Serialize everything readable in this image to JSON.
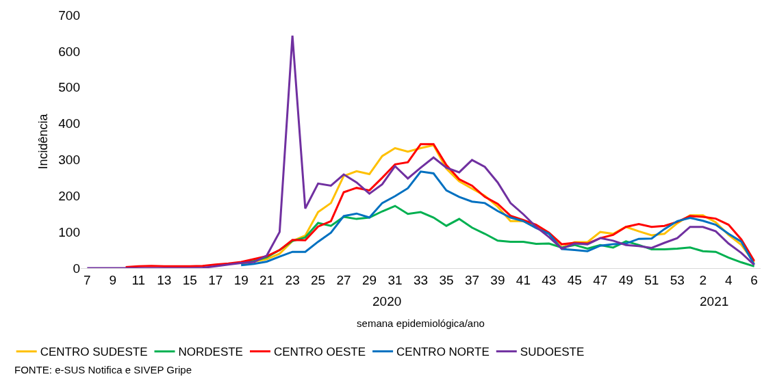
{
  "chart_data": {
    "type": "line",
    "xlabel": "semana epidemiológica/ano",
    "ylabel": "Incidência",
    "categories": [
      "7",
      null,
      "9",
      null,
      "11",
      null,
      "13",
      null,
      "15",
      null,
      "17",
      null,
      "19",
      null,
      "21",
      null,
      "23",
      null,
      "25",
      null,
      "27",
      null,
      "29",
      null,
      "31",
      null,
      "33",
      null,
      "35",
      null,
      "37",
      null,
      "39",
      null,
      "41",
      null,
      "43",
      null,
      "45",
      null,
      "47",
      null,
      "49",
      null,
      "51",
      null,
      "53",
      null,
      "2",
      null,
      "4",
      null,
      "6"
    ],
    "ylim": [
      0,
      700
    ],
    "yticks": [
      0,
      100,
      200,
      300,
      400,
      500,
      600,
      700
    ],
    "legend": "bottom",
    "marker": "none",
    "line_style": "solid",
    "series": [
      {
        "name": "CENTRO SUDESTE",
        "color": "#ffc000",
        "values": [
          null,
          null,
          null,
          null,
          null,
          null,
          null,
          null,
          null,
          null,
          null,
          null,
          12,
          18,
          25,
          40,
          75,
          90,
          155,
          180,
          255,
          268,
          260,
          310,
          332,
          322,
          332,
          340,
          275,
          240,
          220,
          200,
          170,
          130,
          130,
          114,
          95,
          57,
          72,
          72,
          100,
          95,
          114,
          102,
          91,
          95,
          124,
          146,
          146,
          127,
          92,
          64,
          16
        ]
      },
      {
        "name": "NORDESTE",
        "color": "#00b050",
        "values": [
          null,
          null,
          null,
          null,
          null,
          null,
          null,
          null,
          null,
          null,
          null,
          null,
          14,
          20,
          30,
          50,
          75,
          85,
          125,
          117,
          142,
          136,
          140,
          157,
          172,
          150,
          155,
          140,
          117,
          136,
          112,
          95,
          76,
          73,
          73,
          67,
          68,
          57,
          64,
          54,
          64,
          57,
          74,
          64,
          52,
          52,
          54,
          57,
          47,
          45,
          29,
          16,
          5
        ]
      },
      {
        "name": "CENTRO OESTE",
        "color": "#ff0000",
        "values": [
          null,
          null,
          null,
          3,
          5,
          6,
          5,
          5,
          5,
          6,
          10,
          13,
          17,
          25,
          33,
          50,
          78,
          77,
          115,
          130,
          210,
          222,
          215,
          250,
          287,
          293,
          343,
          343,
          285,
          246,
          228,
          197,
          178,
          145,
          133,
          120,
          98,
          66,
          70,
          68,
          83,
          92,
          114,
          122,
          114,
          117,
          128,
          144,
          142,
          137,
          120,
          79,
          20
        ]
      },
      {
        "name": "CENTRO NORTE",
        "color": "#0070c0",
        "values": [
          null,
          null,
          null,
          null,
          null,
          null,
          null,
          null,
          null,
          null,
          null,
          null,
          8,
          12,
          18,
          32,
          45,
          45,
          73,
          98,
          144,
          151,
          140,
          180,
          199,
          221,
          267,
          262,
          215,
          197,
          184,
          180,
          158,
          140,
          130,
          111,
          95,
          53,
          50,
          47,
          62,
          66,
          68,
          81,
          82,
          108,
          130,
          139,
          131,
          120,
          95,
          73,
          10
        ]
      },
      {
        "name": "SUDOESTE",
        "color": "#7030a0",
        "values": [
          0,
          0,
          0,
          0,
          0,
          0,
          0,
          0,
          0,
          1,
          5,
          10,
          14,
          17,
          35,
          100,
          643,
          165,
          234,
          228,
          259,
          237,
          206,
          232,
          282,
          248,
          278,
          306,
          278,
          265,
          299,
          280,
          237,
          180,
          149,
          114,
          86,
          54,
          68,
          66,
          83,
          76,
          64,
          61,
          56,
          70,
          83,
          114,
          114,
          102,
          68,
          42,
          9
        ]
      }
    ],
    "annotations": [
      "2020",
      "2021",
      "FONTE: e-SUS Notifica e SIVEP Gripe"
    ]
  }
}
